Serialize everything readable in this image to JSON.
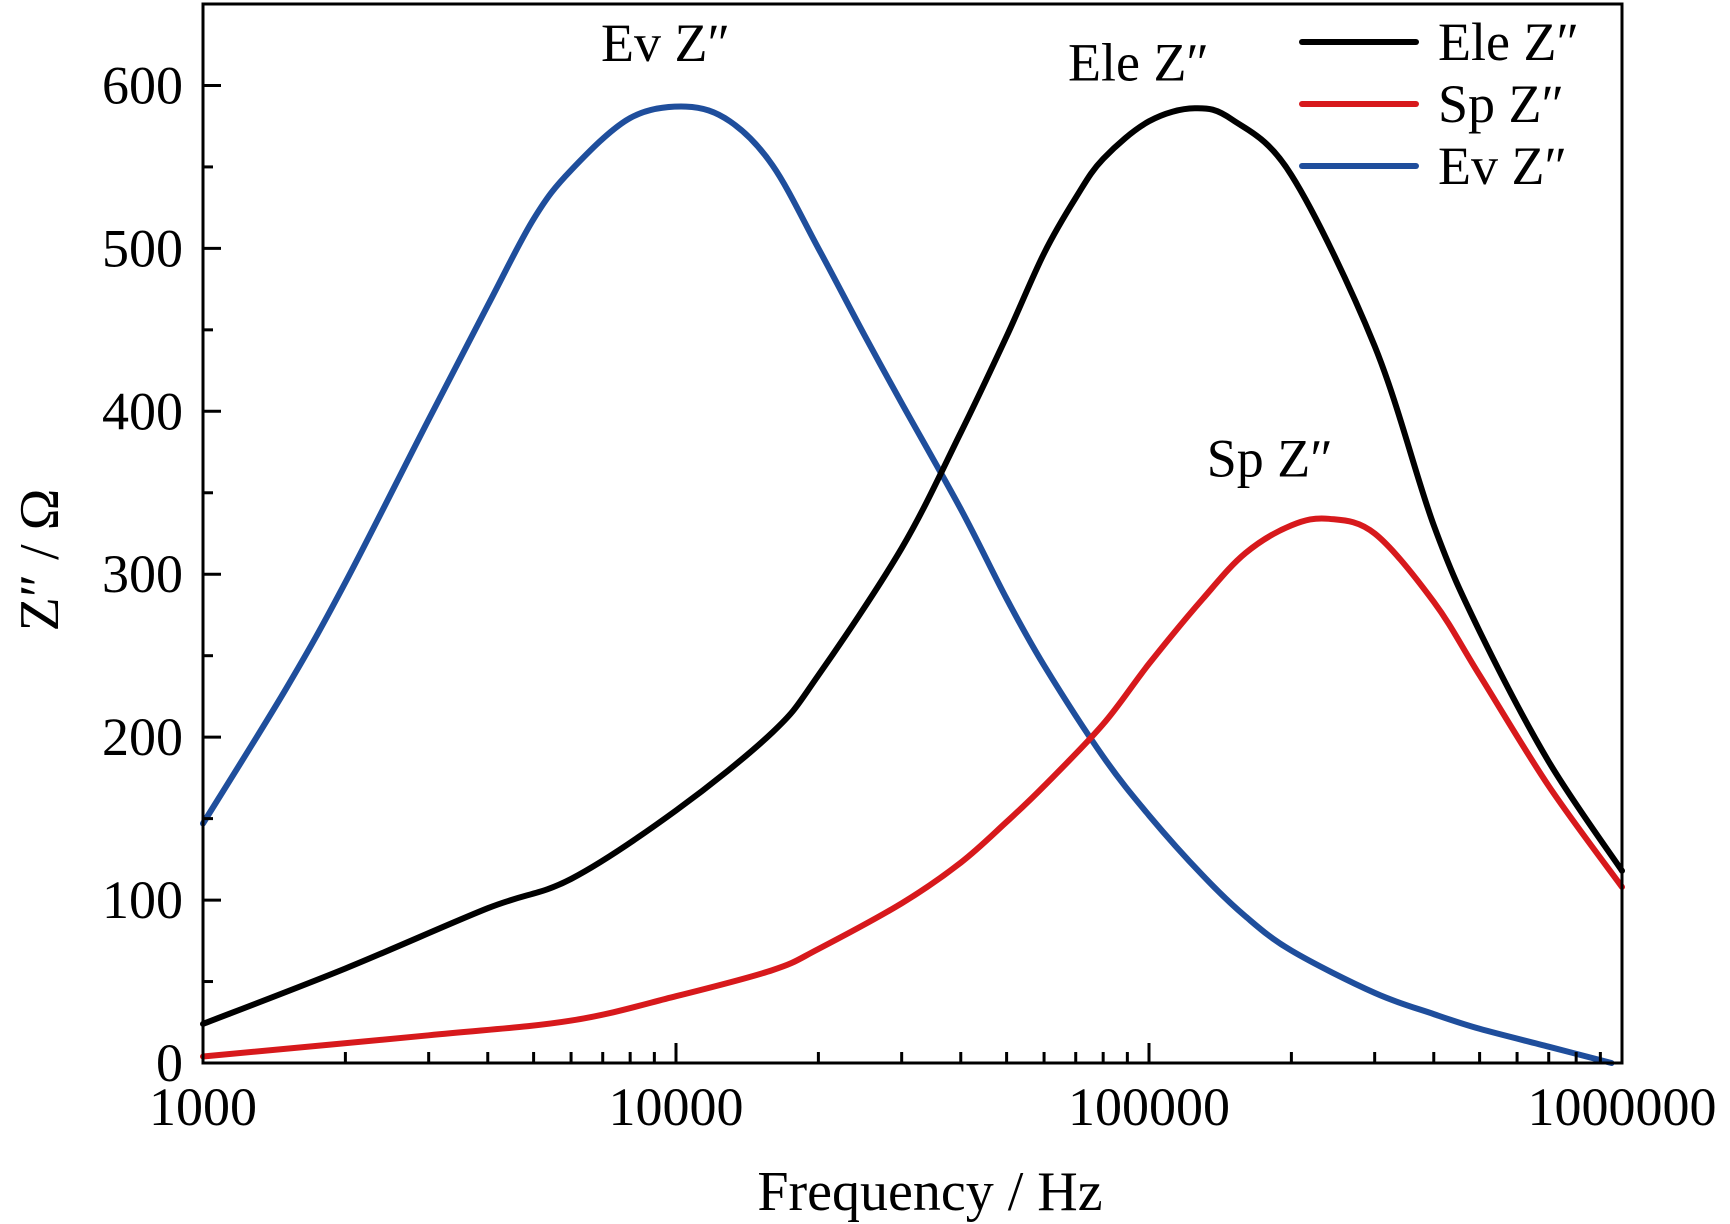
{
  "chart_data": {
    "type": "line",
    "xlabel": "Frequency / Hz",
    "ylabel": "Z″ / Ω",
    "xscale": "log",
    "xlim": [
      1000,
      1000000
    ],
    "ylim": [
      0,
      650
    ],
    "xticks": [
      1000,
      10000,
      100000,
      1000000
    ],
    "xtick_labels": [
      "1000",
      "10000",
      "100000",
      "1000000"
    ],
    "yticks": [
      0,
      100,
      200,
      300,
      400,
      500,
      600
    ],
    "ytick_labels": [
      "0",
      "100",
      "200",
      "300",
      "400",
      "500",
      "600"
    ],
    "legend_placement": "top-right",
    "grid": false,
    "series": [
      {
        "name": "Ele Z″",
        "color": "#000000",
        "x": [
          1000,
          2000,
          4000,
          6000,
          10000,
          16000,
          20000,
          30000,
          40000,
          50000,
          60000,
          70000,
          80000,
          100000,
          125000,
          150000,
          200000,
          300000,
          400000,
          500000,
          700000,
          1000000
        ],
        "y": [
          24,
          58,
          95,
          113,
          155,
          203,
          238,
          316,
          387,
          446,
          497,
          531,
          555,
          578,
          586,
          579,
          545,
          440,
          330,
          265,
          185,
          118
        ]
      },
      {
        "name": "Sp Z″",
        "color": "#d7191c",
        "x": [
          1000,
          3000,
          6000,
          10000,
          16000,
          20000,
          30000,
          40000,
          50000,
          60000,
          80000,
          100000,
          130000,
          160000,
          200000,
          240000,
          300000,
          400000,
          500000,
          700000,
          1000000
        ],
        "y": [
          4,
          17,
          26,
          41,
          57,
          70,
          98,
          123,
          148,
          170,
          208,
          245,
          285,
          313,
          330,
          334,
          325,
          283,
          238,
          170,
          108
        ]
      },
      {
        "name": "Ev Z″",
        "color": "#1f4e9c",
        "x": [
          1000,
          1500,
          2000,
          3000,
          4000,
          5000,
          6000,
          8000,
          10500,
          13000,
          16000,
          20000,
          25000,
          30000,
          40000,
          50000,
          60000,
          80000,
          100000,
          130000,
          160000,
          200000,
          300000,
          400000,
          500000,
          700000,
          950000
        ],
        "y": [
          147,
          230,
          295,
          395,
          465,
          518,
          548,
          580,
          587,
          578,
          551,
          500,
          447,
          405,
          340,
          285,
          244,
          188,
          152,
          115,
          90,
          69,
          43,
          30,
          21,
          10,
          0
        ]
      }
    ],
    "annotations": [
      {
        "text": "Ev Z″",
        "x": 9500,
        "y": 615
      },
      {
        "text": "Ele Z″",
        "x": 95000,
        "y": 603
      },
      {
        "text": "Sp Z″",
        "x": 180000,
        "y": 360
      }
    ]
  }
}
